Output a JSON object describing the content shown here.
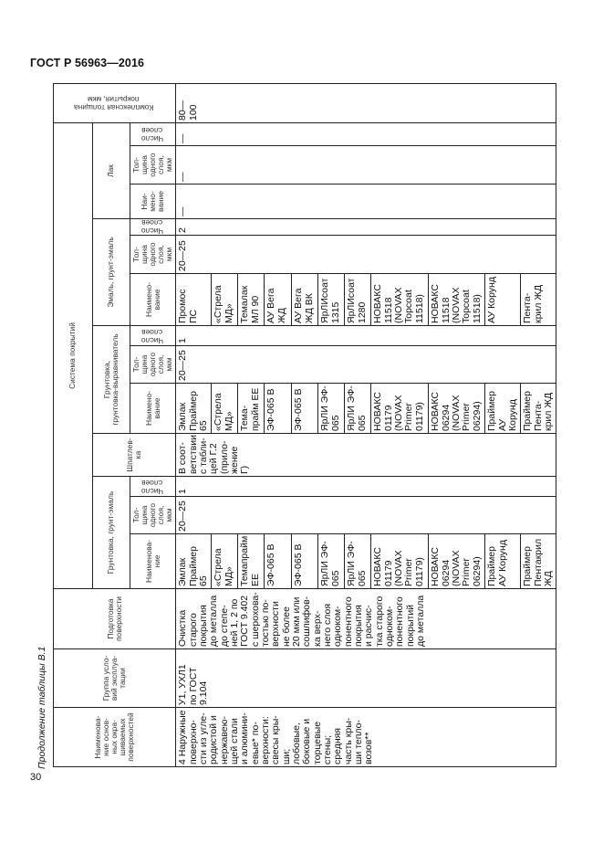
{
  "header": {
    "doc_title": "ГОСТ Р 56963—2016",
    "page_number": "30"
  },
  "caption": "Продолжение таблицы В.1",
  "table": {
    "headers": {
      "surface_name": "Наименова-\nние основ-\nных окра-\nшиваемых\nповерхностей",
      "exploitation_group": "Группа усло-\nвий эксплуа-\nтации",
      "surface_prep": "Подготовка\nповерхности",
      "coating_system": "Система покрытий",
      "primer_enamel": "Грунтовка, грунт-эмаль",
      "putty": "Шпатлев-\nка",
      "primer_leveler": "Грунтовка,\nгрунтовка-выравниватель",
      "enamel": "Эмаль, грунт-эмаль",
      "varnish": "Лак",
      "total_thickness": "Комплексная толщина\nпокрытия, мкм",
      "name_a": "Наименова-\nние",
      "name_b": "Наимено-\nвание",
      "name_c": "Наи-\nмено-\nвание",
      "thickness": "Тол-\nщина\nодного\nслоя,\nмкм",
      "layers": "Число\nслоев"
    },
    "span_values": {
      "surface_name": "4 Наружные\nповерхно-\nсти из угле-\nродистой и\nнержавею-\nщей стали\nи алюмини-\nевые* по-\nверхности:\nсвесы кры-\nши;\nлобовые,\nбоковые и\nторцевые\nстены;\nсредняя\nчасть кры-\nши тепло-\nвозов**",
      "exploitation_group": "У1, УХЛ1\nпо ГОСТ\n9.104",
      "surface_prep": "Очистка\nстарого\nпокрытия\nдо металла\nдо степе-\nней 1, 2 по\nГОСТ 9.402\nс шерохова-\nтостью по-\nверхности\nне более\n20 мкм или\nсошлифов-\nка верх-\nнего слоя\nодноком-\nпонентного\nпокрытия\nи расчис-\nтка старого\nодноком-\nпонентного\nпокрытий\nдо металла",
      "pe_thickness": "20—25",
      "pe_layers": "1",
      "putty": "В соот-\nветствии\nс табли-\nцей Г.2\n(прило-\nжение Г)",
      "pl_thickness": "20—25",
      "pl_layers": "1",
      "en_thickness": "20—25",
      "en_layers": "2",
      "varnish_name": "—",
      "varnish_thickness": "—",
      "varnish_layers": "—",
      "total_thickness": "80—100"
    },
    "rows": [
      {
        "primer_enamel": "Эмлак\nПраймер 65",
        "primer_leveler": "Эмлак\nПраймер\n65",
        "enamel": "Промос\nПС"
      },
      {
        "primer_enamel": "«Стрела\nМД»",
        "primer_leveler": "«Стрела\nМД»",
        "enamel": "«Стрела\nМД»"
      },
      {
        "primer_enamel": "Темапрайм\nЕЕ",
        "primer_leveler": "Тема-\nпрайм ЕЕ",
        "enamel": "Темалак\nМЛ 90"
      },
      {
        "primer_enamel": "ЭФ-065 В",
        "primer_leveler": "ЭФ-065 В",
        "enamel": "АУ Вега\nЖД"
      },
      {
        "primer_enamel": "ЭФ-065 В",
        "primer_leveler": "ЭФ-065 В",
        "enamel": "АУ Вега\nЖД ВК"
      },
      {
        "primer_enamel": "ЯрЛИ ЭФ-\n065",
        "primer_leveler": "ЯрЛИ ЭФ-\n065",
        "enamel": "ЯрЛИсоат\n1315"
      },
      {
        "primer_enamel": "ЯрЛИ ЭФ-\n065",
        "primer_leveler": "ЯрЛИ ЭФ-\n065",
        "enamel": "ЯрЛИсоат\n1280"
      },
      {
        "primer_enamel": "НОВАКС\n01179\n(NOVAX\nPrimer\n01179)",
        "primer_leveler": "НОВАКС\n01179\n(NOVAX\nPrimer\n01179)",
        "enamel": "НОВАКС\n11518\n(NOVAX\nTopcoat\n11518)"
      },
      {
        "primer_enamel": "НОВАКС\n06294\n(NOVAX\nPrimer\n06294)",
        "primer_leveler": "НОВАКС\n06294\n(NOVAX\nPrimer\n06294)",
        "enamel": "НОВАКС\n11518\n(NOVAX\nTopcoat\n11518)"
      },
      {
        "primer_enamel": "Праймер\nАУ Корунд",
        "primer_leveler": "Праймер\nАУ Корунд",
        "enamel": "АУ Корунд"
      },
      {
        "primer_enamel": "Праймер\nПентакрил\nЖД",
        "primer_leveler": "Праймер\nПента-\nкрил ЖД",
        "enamel": "Пента-\nкрил ЖД"
      }
    ]
  }
}
